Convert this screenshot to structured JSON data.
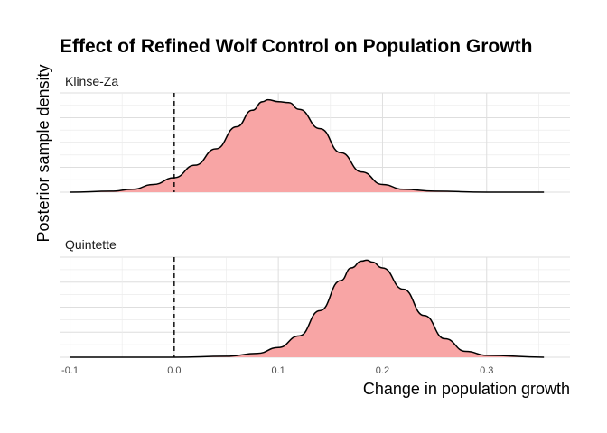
{
  "chart_data": {
    "type": "area",
    "title": "Effect of Refined Wolf Control on Population Growth",
    "xlabel": "Change in population growth",
    "ylabel": "Posterior sample density",
    "xlim": [
      -0.11,
      0.38
    ],
    "x_ticks": [
      -0.1,
      0.0,
      0.1,
      0.2,
      0.3
    ],
    "x_tick_labels": [
      "-0.1",
      "0.0",
      "0.1",
      "0.2",
      "0.3"
    ],
    "reference_line_x": 0.0,
    "fill_color": "#f8a5a5",
    "line_color": "#000000",
    "grid": true,
    "panels": [
      {
        "name": "Klinse-Za",
        "x": [
          -0.1,
          -0.06,
          -0.04,
          -0.02,
          0.0,
          0.02,
          0.04,
          0.06,
          0.075,
          0.085,
          0.09,
          0.1,
          0.11,
          0.12,
          0.14,
          0.16,
          0.18,
          0.2,
          0.22,
          0.25,
          0.3,
          0.355
        ],
        "density": [
          0.0,
          0.01,
          0.03,
          0.08,
          0.15,
          0.28,
          0.45,
          0.68,
          0.85,
          0.94,
          0.96,
          0.94,
          0.93,
          0.86,
          0.66,
          0.41,
          0.21,
          0.08,
          0.03,
          0.01,
          0.0,
          0.0
        ]
      },
      {
        "name": "Quintette",
        "x": [
          -0.1,
          0.0,
          0.05,
          0.08,
          0.1,
          0.12,
          0.14,
          0.16,
          0.17,
          0.18,
          0.185,
          0.19,
          0.2,
          0.22,
          0.24,
          0.26,
          0.28,
          0.3,
          0.355
        ],
        "density": [
          0.0,
          0.0,
          0.01,
          0.04,
          0.1,
          0.22,
          0.48,
          0.79,
          0.92,
          0.99,
          1.0,
          0.98,
          0.92,
          0.7,
          0.43,
          0.19,
          0.06,
          0.02,
          0.0
        ]
      }
    ]
  }
}
